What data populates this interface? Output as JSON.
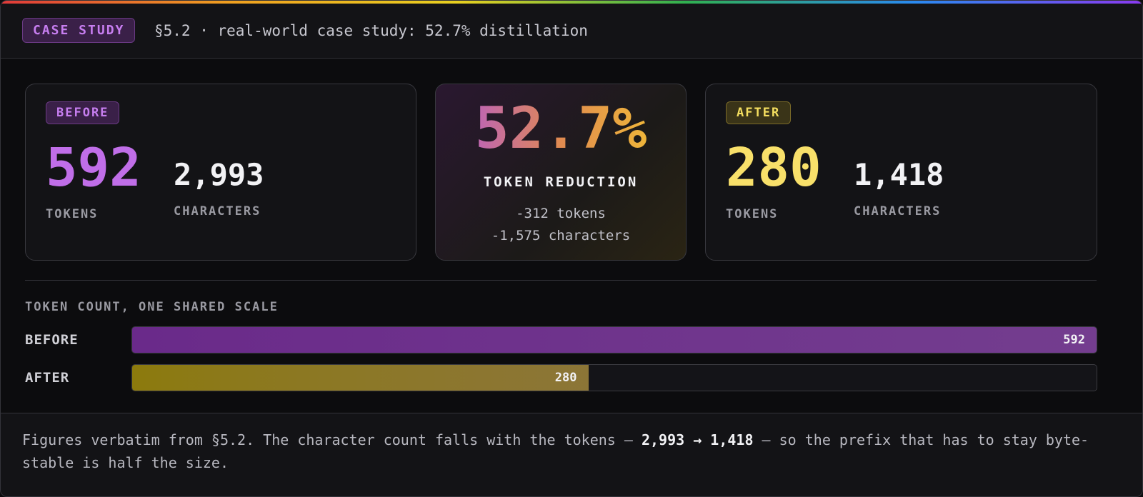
{
  "header": {
    "badge": "CASE STUDY",
    "title": "§5.2 · real-world case study: 52.7% distillation"
  },
  "before": {
    "badge": "BEFORE",
    "tokens": "592",
    "tokens_label": "TOKENS",
    "characters": "2,993",
    "characters_label": "CHARACTERS"
  },
  "reduction": {
    "value": "52.7%",
    "label": "TOKEN REDUCTION",
    "tokens_delta": "-312 tokens",
    "characters_delta": "-1,575 characters"
  },
  "after": {
    "badge": "AFTER",
    "tokens": "280",
    "tokens_label": "TOKENS",
    "characters": "1,418",
    "characters_label": "CHARACTERS"
  },
  "bar_chart": {
    "type": "bar",
    "title": "TOKEN COUNT, ONE SHARED SCALE",
    "categories": [
      "BEFORE",
      "AFTER"
    ],
    "values": [
      592,
      280
    ],
    "xlim": [
      0,
      592
    ],
    "colors": [
      "#6a2a8a",
      "#8c7a0c"
    ]
  },
  "footer": {
    "parts": [
      "Figures verbatim from §5.2. The character count falls with the tokens — ",
      "2,993 → 1,418",
      " — so the prefix that has to stay byte-stable is half the size."
    ]
  }
}
